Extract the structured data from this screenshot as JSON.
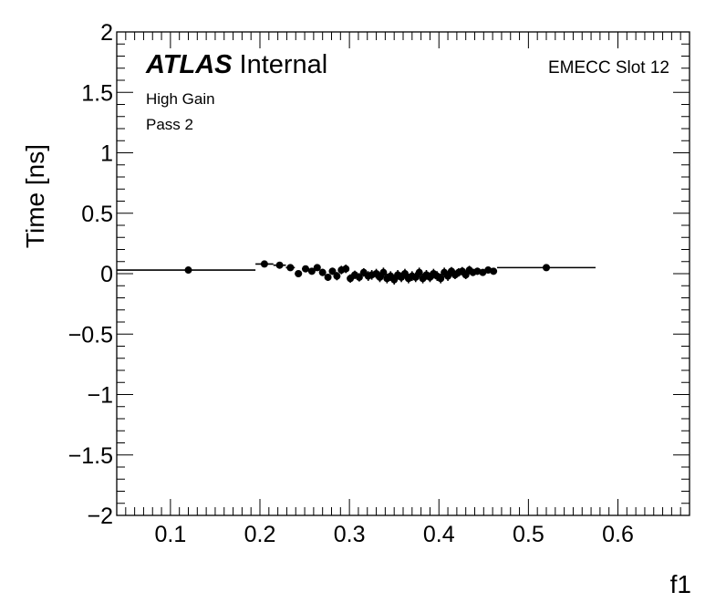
{
  "chart_data": {
    "type": "scatter",
    "title": "",
    "xlabel": "f1",
    "ylabel": "Time [ns]",
    "xlim": [
      0.04,
      0.68
    ],
    "ylim": [
      -2,
      2
    ],
    "x_ticks": [
      0.1,
      0.2,
      0.3,
      0.4,
      0.5,
      0.6
    ],
    "x_tick_labels": [
      "0.1",
      "0.2",
      "0.3",
      "0.4",
      "0.5",
      "0.6"
    ],
    "y_ticks": [
      -2,
      -1.5,
      -1,
      -0.5,
      0,
      0.5,
      1,
      1.5,
      2
    ],
    "y_tick_labels": [
      "−2",
      "−1.5",
      "−1",
      "−0.5",
      "0",
      "0.5",
      "1",
      "1.5",
      "2"
    ],
    "grid": false,
    "annotations": {
      "experiment": "ATLAS",
      "status": "Internal",
      "gain": "High Gain",
      "pass": "Pass 2",
      "slot": "EMECC Slot 12"
    },
    "series": [
      {
        "points": [
          {
            "x": 0.12,
            "y": 0.03,
            "xlo": 0.04,
            "xhi": 0.195,
            "ey": 0.005
          },
          {
            "x": 0.205,
            "y": 0.08,
            "xlo": 0.195,
            "xhi": 0.215,
            "ey": 0.01
          },
          {
            "x": 0.222,
            "y": 0.07,
            "xlo": 0.215,
            "xhi": 0.229,
            "ey": 0.01
          },
          {
            "x": 0.234,
            "y": 0.05,
            "xlo": 0.229,
            "xhi": 0.239,
            "ey": 0.015
          },
          {
            "x": 0.243,
            "y": 0.0,
            "xlo": 0.239,
            "xhi": 0.247,
            "ey": 0.02
          },
          {
            "x": 0.251,
            "y": 0.04,
            "xlo": 0.247,
            "xhi": 0.255,
            "ey": 0.02
          },
          {
            "x": 0.258,
            "y": 0.02,
            "xlo": 0.255,
            "xhi": 0.261,
            "ey": 0.025
          },
          {
            "x": 0.264,
            "y": 0.05,
            "xlo": 0.261,
            "xhi": 0.267,
            "ey": 0.025
          },
          {
            "x": 0.27,
            "y": 0.01,
            "xlo": 0.267,
            "xhi": 0.273,
            "ey": 0.03
          },
          {
            "x": 0.276,
            "y": -0.03,
            "xlo": 0.273,
            "xhi": 0.279,
            "ey": 0.03
          },
          {
            "x": 0.281,
            "y": 0.02,
            "xlo": 0.279,
            "xhi": 0.284,
            "ey": 0.03
          },
          {
            "x": 0.286,
            "y": -0.02,
            "xlo": 0.284,
            "xhi": 0.289,
            "ey": 0.035
          },
          {
            "x": 0.291,
            "y": 0.03,
            "xlo": 0.289,
            "xhi": 0.294,
            "ey": 0.035
          },
          {
            "x": 0.296,
            "y": 0.04,
            "xlo": 0.294,
            "xhi": 0.299,
            "ey": 0.035
          },
          {
            "x": 0.301,
            "y": -0.04,
            "xlo": 0.299,
            "xhi": 0.304,
            "ey": 0.035
          },
          {
            "x": 0.306,
            "y": -0.01,
            "xlo": 0.304,
            "xhi": 0.309,
            "ey": 0.035
          },
          {
            "x": 0.311,
            "y": -0.03,
            "xlo": 0.309,
            "xhi": 0.314,
            "ey": 0.035
          },
          {
            "x": 0.316,
            "y": 0.01,
            "xlo": 0.314,
            "xhi": 0.318,
            "ey": 0.035
          },
          {
            "x": 0.321,
            "y": -0.02,
            "xlo": 0.318,
            "xhi": 0.323,
            "ey": 0.04
          },
          {
            "x": 0.325,
            "y": -0.01,
            "xlo": 0.323,
            "xhi": 0.327,
            "ey": 0.04
          },
          {
            "x": 0.33,
            "y": 0.0,
            "xlo": 0.327,
            "xhi": 0.332,
            "ey": 0.04
          },
          {
            "x": 0.334,
            "y": -0.03,
            "xlo": 0.332,
            "xhi": 0.336,
            "ey": 0.04
          },
          {
            "x": 0.338,
            "y": 0.01,
            "xlo": 0.336,
            "xhi": 0.34,
            "ey": 0.04
          },
          {
            "x": 0.342,
            "y": -0.04,
            "xlo": 0.34,
            "xhi": 0.344,
            "ey": 0.04
          },
          {
            "x": 0.346,
            "y": -0.02,
            "xlo": 0.344,
            "xhi": 0.348,
            "ey": 0.04
          },
          {
            "x": 0.35,
            "y": -0.05,
            "xlo": 0.348,
            "xhi": 0.352,
            "ey": 0.04
          },
          {
            "x": 0.354,
            "y": -0.01,
            "xlo": 0.352,
            "xhi": 0.356,
            "ey": 0.04
          },
          {
            "x": 0.358,
            "y": -0.03,
            "xlo": 0.356,
            "xhi": 0.36,
            "ey": 0.04
          },
          {
            "x": 0.362,
            "y": 0.0,
            "xlo": 0.36,
            "xhi": 0.364,
            "ey": 0.04
          },
          {
            "x": 0.366,
            "y": -0.04,
            "xlo": 0.364,
            "xhi": 0.368,
            "ey": 0.04
          },
          {
            "x": 0.37,
            "y": -0.02,
            "xlo": 0.368,
            "xhi": 0.372,
            "ey": 0.04
          },
          {
            "x": 0.374,
            "y": -0.03,
            "xlo": 0.372,
            "xhi": 0.376,
            "ey": 0.04
          },
          {
            "x": 0.378,
            "y": 0.01,
            "xlo": 0.376,
            "xhi": 0.38,
            "ey": 0.04
          },
          {
            "x": 0.382,
            "y": -0.04,
            "xlo": 0.38,
            "xhi": 0.384,
            "ey": 0.04
          },
          {
            "x": 0.386,
            "y": -0.01,
            "xlo": 0.384,
            "xhi": 0.388,
            "ey": 0.04
          },
          {
            "x": 0.39,
            "y": -0.03,
            "xlo": 0.388,
            "xhi": 0.392,
            "ey": 0.04
          },
          {
            "x": 0.394,
            "y": 0.0,
            "xlo": 0.392,
            "xhi": 0.396,
            "ey": 0.04
          },
          {
            "x": 0.398,
            "y": -0.02,
            "xlo": 0.396,
            "xhi": 0.4,
            "ey": 0.04
          },
          {
            "x": 0.402,
            "y": -0.04,
            "xlo": 0.4,
            "xhi": 0.404,
            "ey": 0.04
          },
          {
            "x": 0.406,
            "y": 0.01,
            "xlo": 0.404,
            "xhi": 0.408,
            "ey": 0.04
          },
          {
            "x": 0.41,
            "y": -0.02,
            "xlo": 0.408,
            "xhi": 0.412,
            "ey": 0.04
          },
          {
            "x": 0.414,
            "y": 0.02,
            "xlo": 0.412,
            "xhi": 0.416,
            "ey": 0.035
          },
          {
            "x": 0.418,
            "y": -0.01,
            "xlo": 0.416,
            "xhi": 0.42,
            "ey": 0.035
          },
          {
            "x": 0.422,
            "y": 0.01,
            "xlo": 0.42,
            "xhi": 0.424,
            "ey": 0.035
          },
          {
            "x": 0.426,
            "y": 0.02,
            "xlo": 0.424,
            "xhi": 0.428,
            "ey": 0.035
          },
          {
            "x": 0.43,
            "y": -0.01,
            "xlo": 0.428,
            "xhi": 0.432,
            "ey": 0.035
          },
          {
            "x": 0.434,
            "y": 0.03,
            "xlo": 0.432,
            "xhi": 0.436,
            "ey": 0.035
          },
          {
            "x": 0.438,
            "y": 0.01,
            "xlo": 0.436,
            "xhi": 0.44,
            "ey": 0.03
          },
          {
            "x": 0.443,
            "y": 0.02,
            "xlo": 0.44,
            "xhi": 0.446,
            "ey": 0.03
          },
          {
            "x": 0.449,
            "y": 0.01,
            "xlo": 0.446,
            "xhi": 0.452,
            "ey": 0.025
          },
          {
            "x": 0.455,
            "y": 0.03,
            "xlo": 0.452,
            "xhi": 0.458,
            "ey": 0.02
          },
          {
            "x": 0.461,
            "y": 0.02,
            "xlo": 0.458,
            "xhi": 0.465,
            "ey": 0.015
          },
          {
            "x": 0.52,
            "y": 0.05,
            "xlo": 0.465,
            "xhi": 0.575,
            "ey": 0.005
          }
        ]
      }
    ]
  }
}
